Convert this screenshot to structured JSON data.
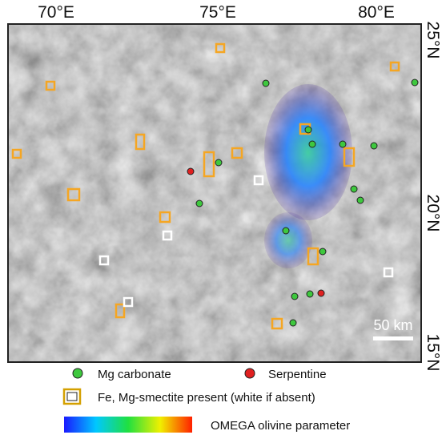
{
  "map": {
    "lon_labels": [
      "70°E",
      "75°E",
      "80°E"
    ],
    "lat_labels": [
      "25°N",
      "20°N",
      "15°N"
    ],
    "scale_bar": "50 km"
  },
  "legend": {
    "items": [
      "Mg carbonate",
      "Serpentine",
      "Fe, Mg-smectite present (white if absent)"
    ],
    "colorbar": "OMEGA olivine parameter"
  }
}
